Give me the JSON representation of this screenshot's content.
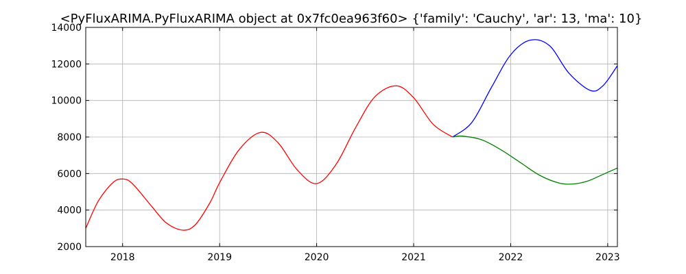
{
  "chart_data": {
    "type": "line",
    "title": "<PyFluxARIMA.PyFluxARIMA object at 0x7fc0ea963f60> {'family': 'Cauchy', 'ar': 13, 'ma': 10}",
    "xlabel": "",
    "ylabel": "",
    "xlim": [
      2017.62,
      2023.1
    ],
    "ylim": [
      2000,
      14000
    ],
    "x_ticks": [
      2018,
      2019,
      2020,
      2021,
      2022,
      2023
    ],
    "y_ticks": [
      2000,
      4000,
      6000,
      8000,
      10000,
      12000,
      14000
    ],
    "grid": true,
    "series": [
      {
        "color": "#ff0000",
        "x": [
          2017.62,
          2017.75,
          2017.9,
          2018.0,
          2018.1,
          2018.3,
          2018.45,
          2018.62,
          2018.75,
          2018.9,
          2019.0,
          2019.2,
          2019.42,
          2019.6,
          2019.8,
          2020.0,
          2020.2,
          2020.4,
          2020.6,
          2020.82,
          2021.0,
          2021.2,
          2021.4
        ],
        "y": [
          3000,
          4500,
          5500,
          5700,
          5450,
          4200,
          3300,
          2900,
          3200,
          4400,
          5500,
          7300,
          8250,
          7700,
          6200,
          5450,
          6500,
          8500,
          10200,
          10800,
          10150,
          8700,
          8000
        ]
      },
      {
        "color": "#0000ff",
        "x": [
          2021.4,
          2021.6,
          2021.8,
          2022.0,
          2022.2,
          2022.4,
          2022.6,
          2022.82,
          2022.95,
          2023.1
        ],
        "y": [
          8000,
          8800,
          10700,
          12500,
          13300,
          13000,
          11500,
          10550,
          10800,
          11900
        ]
      },
      {
        "color": "#008000",
        "x": [
          2021.4,
          2021.5,
          2021.7,
          2021.9,
          2022.1,
          2022.3,
          2022.5,
          2022.65,
          2022.8,
          2022.95,
          2023.1
        ],
        "y": [
          8000,
          8050,
          7850,
          7300,
          6600,
          5900,
          5480,
          5430,
          5600,
          5950,
          6300
        ]
      }
    ]
  }
}
